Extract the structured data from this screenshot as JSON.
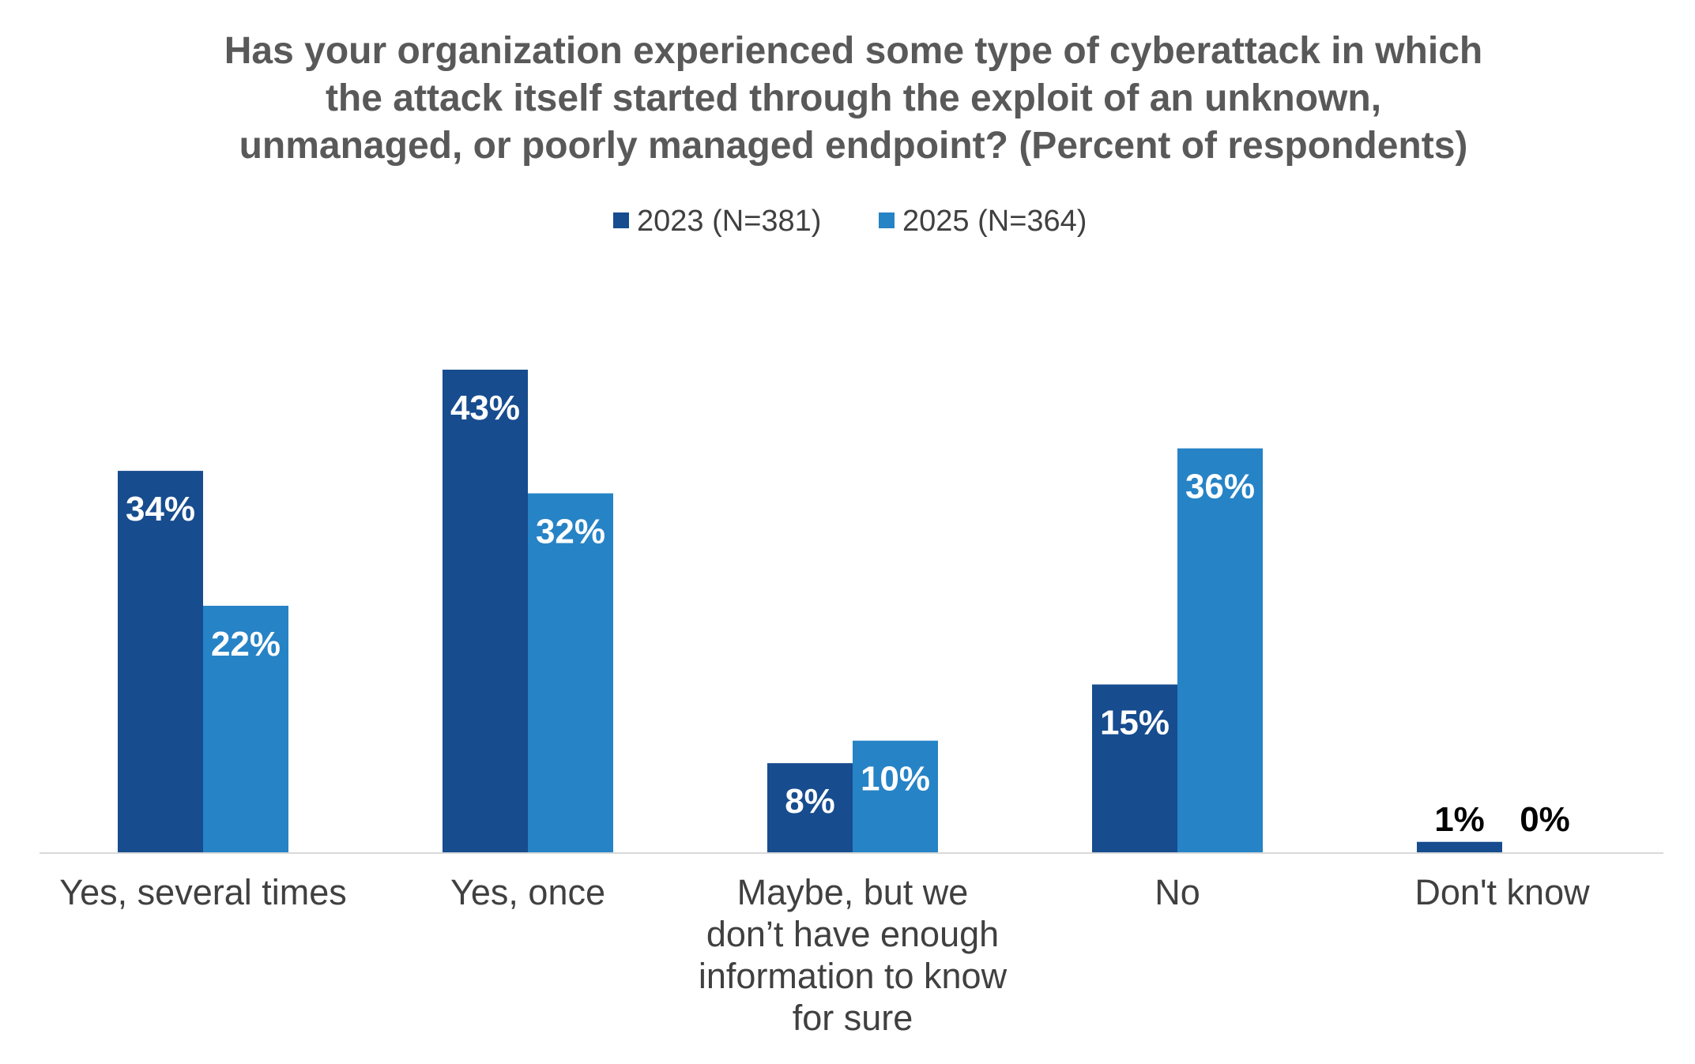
{
  "chart_data": {
    "type": "bar",
    "title_lines": [
      "Has your organization experienced some type of cyberattack in which",
      "the attack itself started through the exploit of an unknown,",
      "unmanaged, or poorly managed endpoint? (Percent of respondents)"
    ],
    "categories": [
      [
        "Yes, several times"
      ],
      [
        "Yes, once"
      ],
      [
        "Maybe, but we",
        "don’t have enough",
        "information to know",
        "for sure"
      ],
      [
        "No"
      ],
      [
        "Don't know"
      ]
    ],
    "series": [
      {
        "name": "2023 (N=381)",
        "color": "#174C8F",
        "values": [
          34,
          43,
          8,
          15,
          1
        ],
        "labels": [
          "34%",
          "43%",
          "8%",
          "15%",
          "1%"
        ]
      },
      {
        "name": "2025 (N=364)",
        "color": "#2683C6",
        "values": [
          22,
          32,
          10,
          36,
          0
        ],
        "labels": [
          "22%",
          "32%",
          "10%",
          "36%",
          "0%"
        ]
      }
    ],
    "ylim": [
      0,
      43
    ],
    "grid": false,
    "legend_position": "top-center",
    "axis_color": "#D9D9D9",
    "label_color_inside": "#FFFFFF",
    "label_color_outside": "#000000"
  }
}
